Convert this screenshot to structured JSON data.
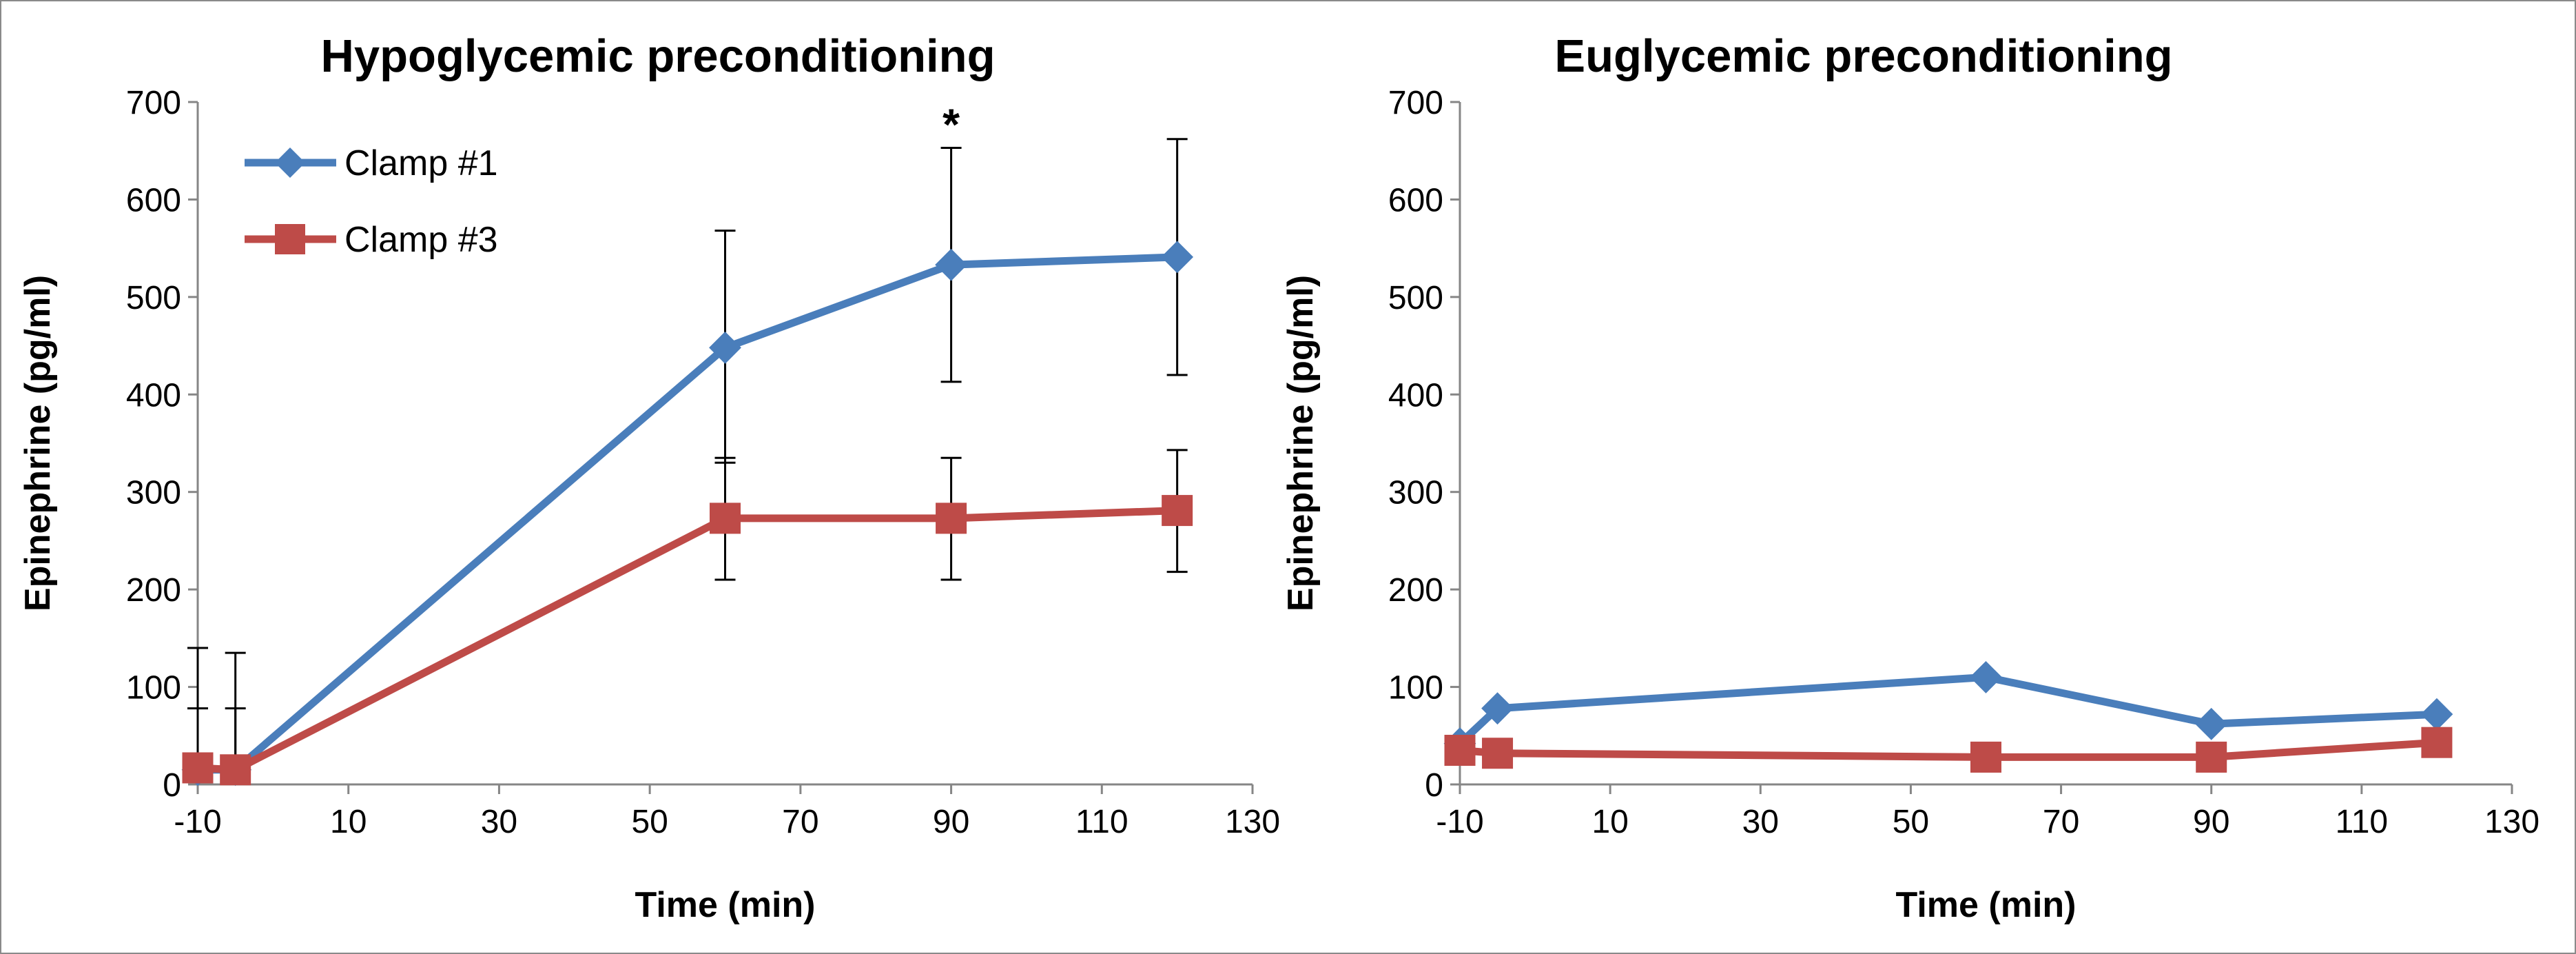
{
  "chart_data": [
    {
      "type": "line",
      "title": "Hypoglycemic preconditioning",
      "xlabel": "Time (min)",
      "ylabel": "Epinephrine (pg/ml)",
      "xlim": [
        -10,
        130
      ],
      "ylim": [
        0,
        700
      ],
      "xticks": [
        -10,
        10,
        30,
        50,
        70,
        90,
        110,
        130
      ],
      "yticks": [
        0,
        100,
        200,
        300,
        400,
        500,
        600,
        700
      ],
      "legend": [
        "Clamp #1",
        "Clamp #3"
      ],
      "annotations": [
        {
          "x": 90,
          "text": "*"
        }
      ],
      "series": [
        {
          "name": "Clamp #1",
          "color": "#4a7ebb",
          "marker": "diamond",
          "x": [
            -10,
            -5,
            60,
            90,
            120
          ],
          "y": [
            15,
            15,
            448,
            533,
            541
          ],
          "err_high": [
            null,
            null,
            568,
            653,
            662
          ],
          "err_low": [
            null,
            null,
            330,
            413,
            420
          ]
        },
        {
          "name": "Clamp #3",
          "color": "#be4b48",
          "marker": "square",
          "x": [
            -10,
            -5,
            60,
            90,
            120
          ],
          "y": [
            17,
            15,
            273,
            273,
            281
          ],
          "err_high": [
            140,
            135,
            335,
            335,
            343
          ],
          "err_low": [
            78,
            78,
            210,
            210,
            218
          ]
        }
      ]
    },
    {
      "type": "line",
      "title": "Euglycemic preconditioning",
      "xlabel": "Time (min)",
      "ylabel": "Epinephrine (pg/ml)",
      "xlim": [
        -10,
        130
      ],
      "ylim": [
        0,
        700
      ],
      "xticks": [
        -10,
        10,
        30,
        50,
        70,
        90,
        110,
        130
      ],
      "yticks": [
        0,
        100,
        200,
        300,
        400,
        500,
        600,
        700
      ],
      "series": [
        {
          "name": "Clamp #1",
          "color": "#4a7ebb",
          "marker": "diamond",
          "x": [
            -10,
            -5,
            60,
            90,
            120
          ],
          "y": [
            42,
            78,
            110,
            62,
            72
          ],
          "err_high": [
            null,
            null,
            null,
            null,
            null
          ],
          "err_low": [
            null,
            null,
            null,
            null,
            null
          ]
        },
        {
          "name": "Clamp #3",
          "color": "#be4b48",
          "marker": "square",
          "x": [
            -10,
            -5,
            60,
            90,
            120
          ],
          "y": [
            35,
            32,
            28,
            28,
            43
          ],
          "err_high": [
            null,
            null,
            null,
            null,
            null
          ],
          "err_low": [
            null,
            null,
            null,
            null,
            null
          ]
        }
      ]
    }
  ]
}
